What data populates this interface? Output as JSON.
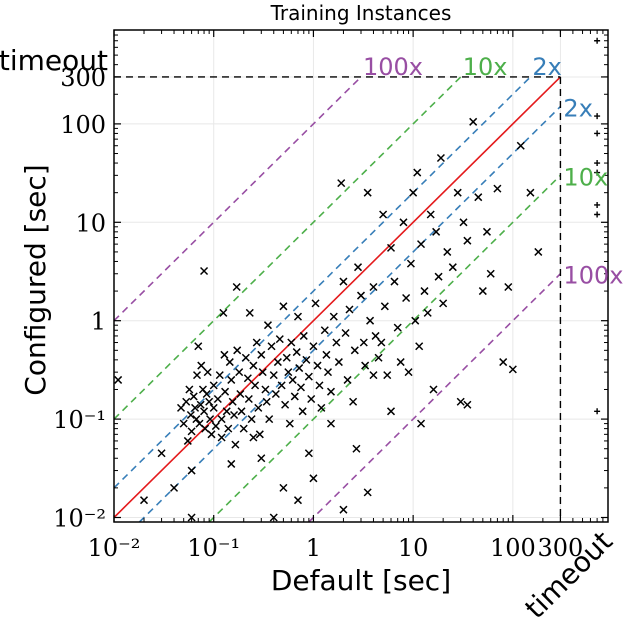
{
  "chart_data": {
    "type": "scatter",
    "title": "Training Instances",
    "xlabel": "Default [sec]",
    "ylabel": "Configured [sec]",
    "xscale": "log",
    "yscale": "log",
    "xlim": [
      0.01,
      900
    ],
    "ylim": [
      0.009,
      900
    ],
    "cutoff": 300,
    "timeout_value": 700,
    "timeout_label": "timeout",
    "x_ticks": [
      {
        "value": 0.01,
        "label": "10⁻²"
      },
      {
        "value": 0.1,
        "label": "10⁻¹"
      },
      {
        "value": 1,
        "label": "1"
      },
      {
        "value": 10,
        "label": "10"
      },
      {
        "value": 100,
        "label": "100"
      },
      {
        "value": 300,
        "label": "300"
      }
    ],
    "y_ticks": [
      {
        "value": 0.01,
        "label": "10⁻²"
      },
      {
        "value": 0.1,
        "label": "10⁻¹"
      },
      {
        "value": 1,
        "label": "1"
      },
      {
        "value": 10,
        "label": "10"
      },
      {
        "value": 100,
        "label": "100"
      },
      {
        "value": 300,
        "label": "300"
      }
    ],
    "grid": true,
    "reference_lines": [
      {
        "factor": 1,
        "label": "",
        "color": "#e41a1c",
        "style": "solid"
      },
      {
        "factor": 2,
        "label": "2x",
        "color": "#377eb8",
        "style": "dashed"
      },
      {
        "factor": 10,
        "label": "10x",
        "color": "#4daf4a",
        "style": "dashed"
      },
      {
        "factor": 100,
        "label": "100x",
        "color": "#984ea3",
        "style": "dashed"
      }
    ],
    "points": [
      [
        0.011,
        0.25
      ],
      [
        0.047,
        0.13
      ],
      [
        0.05,
        0.09
      ],
      [
        0.053,
        0.15
      ],
      [
        0.055,
        0.06
      ],
      [
        0.057,
        0.2
      ],
      [
        0.059,
        0.11
      ],
      [
        0.06,
        0.075
      ],
      [
        0.063,
        0.17
      ],
      [
        0.065,
        0.13
      ],
      [
        0.067,
        0.1
      ],
      [
        0.068,
        0.28
      ],
      [
        0.07,
        0.55
      ],
      [
        0.072,
        0.09
      ],
      [
        0.074,
        0.14
      ],
      [
        0.075,
        0.35
      ],
      [
        0.078,
        0.2
      ],
      [
        0.08,
        0.12
      ],
      [
        0.082,
        0.08
      ],
      [
        0.085,
        0.18
      ],
      [
        0.087,
        0.3
      ],
      [
        0.09,
        0.15
      ],
      [
        0.092,
        0.1
      ],
      [
        0.095,
        0.07
      ],
      [
        0.1,
        0.22
      ],
      [
        0.1,
        0.13
      ],
      [
        0.105,
        0.085
      ],
      [
        0.11,
        0.16
      ],
      [
        0.115,
        0.28
      ],
      [
        0.12,
        0.1
      ],
      [
        0.12,
        0.065
      ],
      [
        0.125,
        1.2
      ],
      [
        0.128,
        0.45
      ],
      [
        0.13,
        0.19
      ],
      [
        0.135,
        0.12
      ],
      [
        0.14,
        0.08
      ],
      [
        0.145,
        0.38
      ],
      [
        0.15,
        0.25
      ],
      [
        0.155,
        0.15
      ],
      [
        0.16,
        0.11
      ],
      [
        0.165,
        0.055
      ],
      [
        0.17,
        2.2
      ],
      [
        0.172,
        0.5
      ],
      [
        0.18,
        0.3
      ],
      [
        0.185,
        0.18
      ],
      [
        0.19,
        0.12
      ],
      [
        0.2,
        0.08
      ],
      [
        0.21,
        0.42
      ],
      [
        0.22,
        0.26
      ],
      [
        0.225,
        0.16
      ],
      [
        0.23,
        1.2
      ],
      [
        0.24,
        0.1
      ],
      [
        0.25,
        0.35
      ],
      [
        0.26,
        0.22
      ],
      [
        0.27,
        0.6
      ],
      [
        0.28,
        0.13
      ],
      [
        0.29,
        0.07
      ],
      [
        0.3,
        0.45
      ],
      [
        0.31,
        0.3
      ],
      [
        0.33,
        0.2
      ],
      [
        0.34,
        0.15
      ],
      [
        0.35,
        0.9
      ],
      [
        0.36,
        0.1
      ],
      [
        0.38,
        0.55
      ],
      [
        0.4,
        0.28
      ],
      [
        0.42,
        0.18
      ],
      [
        0.44,
        0.38
      ],
      [
        0.46,
        0.65
      ],
      [
        0.48,
        0.22
      ],
      [
        0.5,
        1.4
      ],
      [
        0.52,
        0.14
      ],
      [
        0.54,
        0.42
      ],
      [
        0.56,
        0.3
      ],
      [
        0.58,
        0.09
      ],
      [
        0.6,
        0.6
      ],
      [
        0.62,
        0.25
      ],
      [
        0.65,
        0.17
      ],
      [
        0.68,
        0.48
      ],
      [
        0.7,
        1.1
      ],
      [
        0.72,
        0.33
      ],
      [
        0.75,
        0.21
      ],
      [
        0.78,
        0.12
      ],
      [
        0.8,
        0.7
      ],
      [
        0.85,
        0.4
      ],
      [
        0.9,
        0.27
      ],
      [
        0.95,
        0.16
      ],
      [
        1.0,
        0.55
      ],
      [
        1.05,
        1.5
      ],
      [
        1.1,
        0.35
      ],
      [
        1.15,
        0.22
      ],
      [
        1.2,
        0.13
      ],
      [
        1.3,
        0.8
      ],
      [
        1.35,
        0.45
      ],
      [
        1.4,
        0.3
      ],
      [
        1.5,
        0.19
      ],
      [
        1.6,
        1.1
      ],
      [
        1.7,
        0.6
      ],
      [
        1.8,
        0.38
      ],
      [
        1.9,
        25
      ],
      [
        2.0,
        2.5
      ],
      [
        2.1,
        0.75
      ],
      [
        2.2,
        0.25
      ],
      [
        2.3,
        1.3
      ],
      [
        2.5,
        0.15
      ],
      [
        2.6,
        0.5
      ],
      [
        2.7,
        0.05
      ],
      [
        2.8,
        3.5
      ],
      [
        3.0,
        1.8
      ],
      [
        3.2,
        0.6
      ],
      [
        3.3,
        0.35
      ],
      [
        3.5,
        20
      ],
      [
        3.7,
        1.0
      ],
      [
        4.0,
        2.2
      ],
      [
        4.2,
        0.7
      ],
      [
        4.5,
        0.42
      ],
      [
        4.8,
        0.6
      ],
      [
        5.0,
        12
      ],
      [
        5.2,
        1.4
      ],
      [
        5.5,
        0.28
      ],
      [
        6.0,
        5.5
      ],
      [
        6.5,
        2.5
      ],
      [
        7.0,
        0.85
      ],
      [
        7.5,
        0.38
      ],
      [
        8.0,
        10
      ],
      [
        8.5,
        1.7
      ],
      [
        9.0,
        0.3
      ],
      [
        9.5,
        3.8
      ],
      [
        10.0,
        20
      ],
      [
        10.5,
        1.0
      ],
      [
        11.0,
        32
      ],
      [
        11.5,
        0.55
      ],
      [
        12.0,
        6.0
      ],
      [
        13.0,
        2.0
      ],
      [
        14.0,
        1.2
      ],
      [
        15.0,
        12
      ],
      [
        16.0,
        0.2
      ],
      [
        17.0,
        8.0
      ],
      [
        18.0,
        2.8
      ],
      [
        19.0,
        45
      ],
      [
        20.0,
        1.5
      ],
      [
        22.0,
        5.0
      ],
      [
        25.0,
        3.5
      ],
      [
        28.0,
        20
      ],
      [
        30.0,
        0.15
      ],
      [
        32.0,
        10
      ],
      [
        35.0,
        6.5
      ],
      [
        40.0,
        105
      ],
      [
        45.0,
        18
      ],
      [
        50.0,
        2.0
      ],
      [
        55.0,
        8.0
      ],
      [
        60.0,
        3.0
      ],
      [
        70.0,
        22
      ],
      [
        80.0,
        0.38
      ],
      [
        90.0,
        2.2
      ],
      [
        100.0,
        0.32
      ],
      [
        120.0,
        60
      ],
      [
        150.0,
        20
      ],
      [
        180.0,
        5.0
      ],
      [
        35.0,
        0.14
      ],
      [
        0.02,
        0.015
      ],
      [
        0.04,
        0.02
      ],
      [
        0.06,
        0.03
      ],
      [
        0.15,
        0.035
      ],
      [
        0.3,
        0.04
      ],
      [
        0.5,
        0.02
      ],
      [
        0.7,
        0.015
      ],
      [
        1.0,
        0.025
      ],
      [
        2.0,
        0.012
      ],
      [
        0.06,
        0.01
      ],
      [
        0.4,
        0.01
      ],
      [
        3.5,
        0.018
      ],
      [
        0.03,
        0.045
      ],
      [
        0.9,
        0.045
      ],
      [
        6.0,
        0.12
      ],
      [
        12.0,
        0.09
      ],
      [
        0.25,
        0.065
      ],
      [
        1.5,
        0.09
      ],
      [
        0.08,
        3.2
      ],
      [
        4.0,
        0.28
      ]
    ],
    "timeout_points_y": [
      700,
      120,
      80,
      40,
      32,
      15,
      12,
      0.12
    ]
  }
}
